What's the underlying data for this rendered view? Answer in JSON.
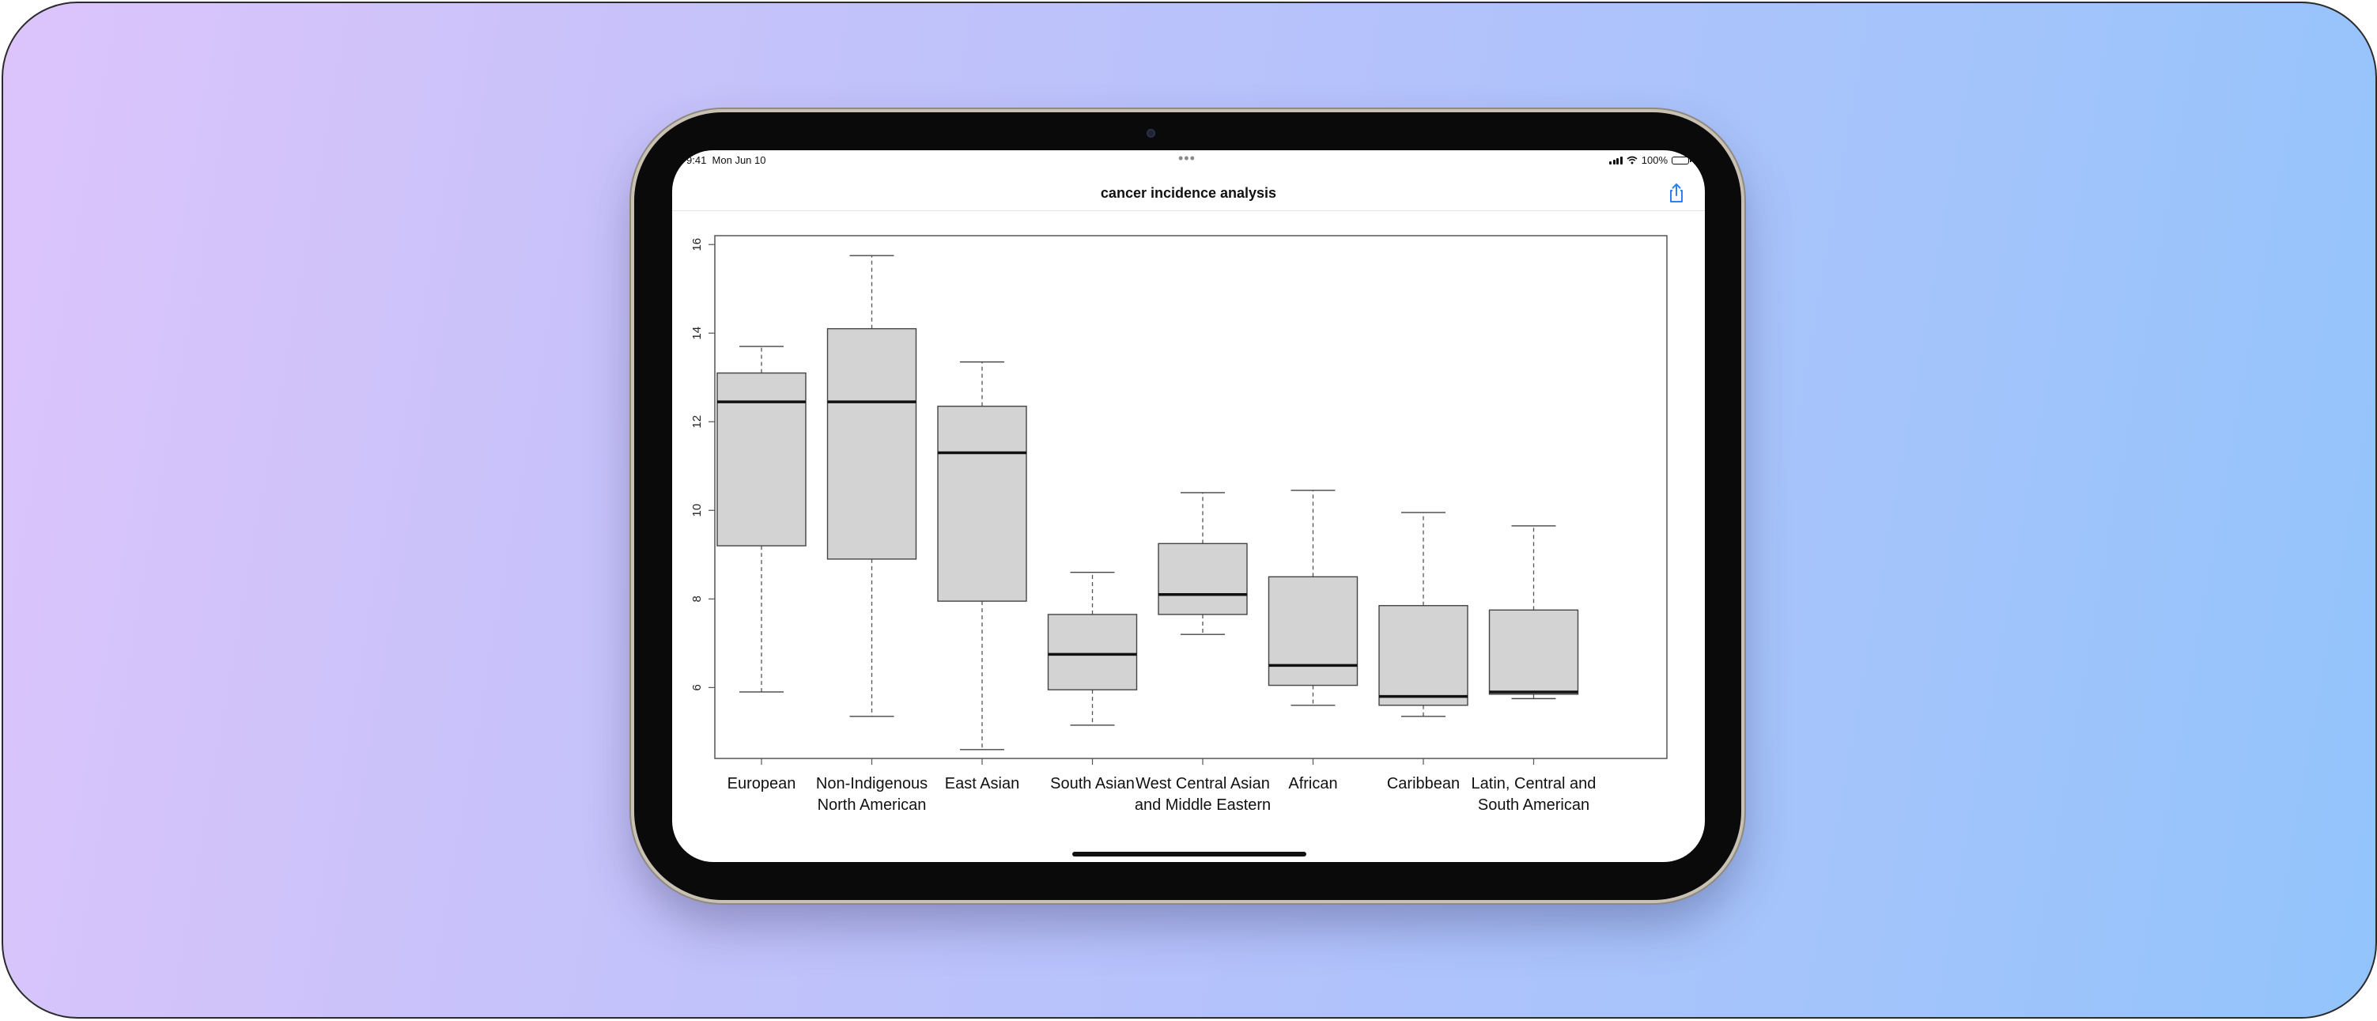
{
  "status_bar": {
    "time": "9:41",
    "date": "Mon Jun 10",
    "battery": "100%",
    "signal_icon": "signal-bars-icon",
    "wifi_icon": "wifi-icon",
    "battery_icon": "battery-icon"
  },
  "nav": {
    "title": "cancer incidence analysis",
    "share_icon": "share-icon",
    "accent_color": "#2f7ff5"
  },
  "chart_data": {
    "type": "boxplot",
    "title": "",
    "xlabel": "",
    "ylabel": "",
    "ylim": [
      4.4,
      16.2
    ],
    "yticks": [
      6,
      8,
      10,
      12,
      14,
      16
    ],
    "box_fill": "#d3d3d3",
    "categories": [
      [
        "European"
      ],
      [
        "Non-Indigenous",
        "North American"
      ],
      [
        "East Asian"
      ],
      [
        "South Asian"
      ],
      [
        "West Central Asian",
        "and Middle Eastern"
      ],
      [
        "African"
      ],
      [
        "Caribbean"
      ],
      [
        "Latin, Central and",
        "South American"
      ]
    ],
    "boxes": [
      {
        "min": 5.9,
        "q1": 9.2,
        "median": 12.45,
        "q3": 13.1,
        "max": 13.7
      },
      {
        "min": 5.35,
        "q1": 8.9,
        "median": 12.45,
        "q3": 14.1,
        "max": 15.75
      },
      {
        "min": 4.6,
        "q1": 7.95,
        "median": 11.3,
        "q3": 12.35,
        "max": 13.35
      },
      {
        "min": 5.15,
        "q1": 5.95,
        "median": 6.75,
        "q3": 7.65,
        "max": 8.6
      },
      {
        "min": 7.2,
        "q1": 7.65,
        "median": 8.1,
        "q3": 9.25,
        "max": 10.4
      },
      {
        "min": 5.6,
        "q1": 6.05,
        "median": 6.5,
        "q3": 8.5,
        "max": 10.45
      },
      {
        "min": 5.35,
        "q1": 5.6,
        "median": 5.8,
        "q3": 7.85,
        "max": 9.95
      },
      {
        "min": 5.75,
        "q1": 5.85,
        "median": 5.9,
        "q3": 7.75,
        "max": 9.65
      }
    ]
  }
}
